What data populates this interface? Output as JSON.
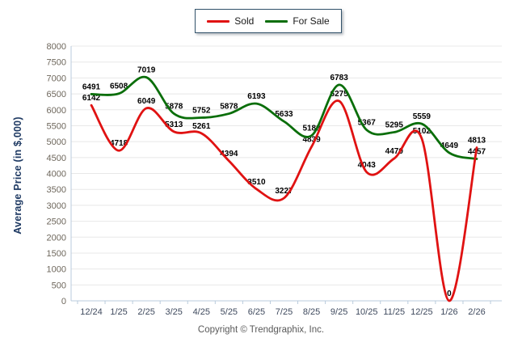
{
  "legend": {
    "items": [
      {
        "label": "Sold",
        "color": "#e01212"
      },
      {
        "label": "For Sale",
        "color": "#0a6e0a"
      }
    ]
  },
  "y_axis_title": "Average Price (in $,000)",
  "footer_text": "Copyright © Trendgraphix, Inc.",
  "chart_data": {
    "type": "line",
    "title": "",
    "xlabel": "",
    "ylabel": "Average Price (in $,000)",
    "categories": [
      "12/24",
      "1/25",
      "2/25",
      "3/25",
      "4/25",
      "5/25",
      "6/25",
      "7/25",
      "8/25",
      "9/25",
      "10/25",
      "11/25",
      "12/25",
      "1/26",
      "2/26"
    ],
    "series": [
      {
        "name": "Sold",
        "color": "#e01212",
        "values": [
          6142,
          4718,
          6049,
          5313,
          5261,
          4394,
          3510,
          3227,
          4839,
          6275,
          4043,
          4470,
          5102,
          0,
          4813
        ]
      },
      {
        "name": "For Sale",
        "color": "#0a6e0a",
        "values": [
          6491,
          6508,
          7019,
          5878,
          5752,
          5878,
          6193,
          5633,
          5189,
          6783,
          5367,
          5295,
          5559,
          4649,
          4457
        ]
      }
    ],
    "ylim": [
      0,
      8000
    ],
    "ytick_step": 500,
    "y_ticks": [
      0,
      500,
      1000,
      1500,
      2000,
      2500,
      3000,
      3500,
      4000,
      4500,
      5000,
      5500,
      6000,
      6500,
      7000,
      7500,
      8000
    ],
    "grid": true,
    "data_labels": true,
    "legend_position": "top-center",
    "colors": {
      "grid_line": "#e8e8e8",
      "axis_line": "#b9cbdc",
      "y_tick_text": "#6e675c",
      "x_tick_text": "#3f4a5e",
      "data_label_text": "#000000"
    }
  }
}
